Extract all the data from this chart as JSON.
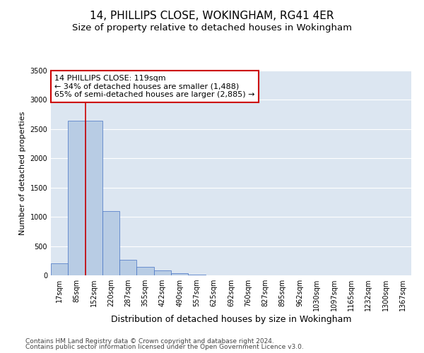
{
  "title1": "14, PHILLIPS CLOSE, WOKINGHAM, RG41 4ER",
  "title2": "Size of property relative to detached houses in Wokingham",
  "xlabel": "Distribution of detached houses by size in Wokingham",
  "ylabel": "Number of detached properties",
  "categories": [
    "17sqm",
    "85sqm",
    "152sqm",
    "220sqm",
    "287sqm",
    "355sqm",
    "422sqm",
    "490sqm",
    "557sqm",
    "625sqm",
    "692sqm",
    "760sqm",
    "827sqm",
    "895sqm",
    "962sqm",
    "1030sqm",
    "1097sqm",
    "1165sqm",
    "1232sqm",
    "1300sqm",
    "1367sqm"
  ],
  "values": [
    205,
    2640,
    2640,
    1100,
    270,
    150,
    80,
    40,
    15,
    3,
    0,
    0,
    0,
    0,
    0,
    0,
    0,
    0,
    0,
    0,
    0
  ],
  "bar_color": "#b8cce4",
  "bar_edge_color": "#4472c4",
  "background_color": "#dce6f1",
  "property_line_x": 1.5,
  "annotation_title": "14 PHILLIPS CLOSE: 119sqm",
  "annotation_line1": "← 34% of detached houses are smaller (1,488)",
  "annotation_line2": "65% of semi-detached houses are larger (2,885) →",
  "annotation_box_color": "#ffffff",
  "annotation_border_color": "#cc0000",
  "ylim": [
    0,
    3500
  ],
  "yticks": [
    0,
    500,
    1000,
    1500,
    2000,
    2500,
    3000,
    3500
  ],
  "footer1": "Contains HM Land Registry data © Crown copyright and database right 2024.",
  "footer2": "Contains public sector information licensed under the Open Government Licence v3.0.",
  "title1_fontsize": 11,
  "title2_fontsize": 9.5,
  "xlabel_fontsize": 9,
  "ylabel_fontsize": 8,
  "tick_fontsize": 7,
  "annotation_fontsize": 8,
  "footer_fontsize": 6.5
}
